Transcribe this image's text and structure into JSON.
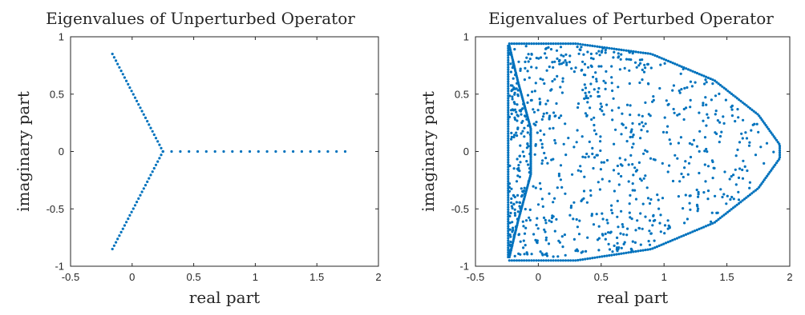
{
  "chart_data": [
    {
      "type": "scatter",
      "title": "Eigenvalues of Unperturbed Operator",
      "xlabel": "real part",
      "ylabel": "imaginary part",
      "xlim": [
        -0.5,
        2
      ],
      "ylim": [
        -1,
        1
      ],
      "xticks": [
        -0.5,
        0,
        0.5,
        1,
        1.5,
        2
      ],
      "xtick_labels": [
        "-0.5",
        "0",
        "0.5",
        "1",
        "1.5",
        "2"
      ],
      "yticks": [
        -1,
        -0.5,
        0,
        0.5,
        1
      ],
      "ytick_labels": [
        "-1",
        "-0.5",
        "0",
        "0.5",
        "1"
      ],
      "marker_color": "#0072BD",
      "grid": false,
      "point_groups": [
        {
          "shape": "line",
          "from": [
            0.25,
            0
          ],
          "to": [
            -0.16,
            0.85
          ],
          "count": 30
        },
        {
          "shape": "line",
          "from": [
            0.25,
            0
          ],
          "to": [
            -0.16,
            -0.85
          ],
          "count": 30
        },
        {
          "shape": "line",
          "from": [
            0.25,
            0
          ],
          "to": [
            1.73,
            0
          ],
          "count": 22
        }
      ]
    },
    {
      "type": "scatter",
      "title": "Eigenvalues of Perturbed Operator",
      "xlabel": "real part",
      "ylabel": "imaginary part",
      "xlim": [
        -0.5,
        2
      ],
      "ylim": [
        -1,
        1
      ],
      "xticks": [
        -0.5,
        0,
        0.5,
        1,
        1.5,
        2
      ],
      "xtick_labels": [
        "-0.5",
        "0",
        "0.5",
        "1",
        "1.5",
        "2"
      ],
      "yticks": [
        -1,
        -0.5,
        0,
        0.5,
        1
      ],
      "ytick_labels": [
        "-1",
        "-0.5",
        "0",
        "0.5",
        "1"
      ],
      "marker_color": "#0072BD",
      "grid": false,
      "point_groups": [
        {
          "shape": "outer_boundary",
          "vertices": [
            [
              -0.23,
              0.94
            ],
            [
              0.3,
              0.94
            ],
            [
              0.9,
              0.85
            ],
            [
              1.4,
              0.62
            ],
            [
              1.75,
              0.32
            ],
            [
              1.92,
              0.06
            ],
            [
              1.92,
              -0.06
            ],
            [
              1.75,
              -0.32
            ],
            [
              1.4,
              -0.62
            ],
            [
              0.9,
              -0.85
            ],
            [
              0.3,
              -0.95
            ],
            [
              -0.23,
              -0.95
            ]
          ],
          "count": 260
        },
        {
          "shape": "inner_boundary",
          "vertices": [
            [
              -0.23,
              0.92
            ],
            [
              -0.16,
              0.6
            ],
            [
              -0.06,
              0.2
            ],
            [
              -0.06,
              -0.2
            ],
            [
              -0.16,
              -0.6
            ],
            [
              -0.23,
              -0.92
            ]
          ],
          "count": 120
        },
        {
          "shape": "left_edge",
          "from": [
            -0.24,
            0.92
          ],
          "to": [
            -0.24,
            -0.92
          ],
          "count": 90
        },
        {
          "shape": "left_strip_fill",
          "x_range": [
            -0.23,
            -0.08
          ],
          "y_range": [
            -0.9,
            0.9
          ],
          "count": 160
        },
        {
          "shape": "interior_fill",
          "count": 700
        }
      ]
    }
  ]
}
